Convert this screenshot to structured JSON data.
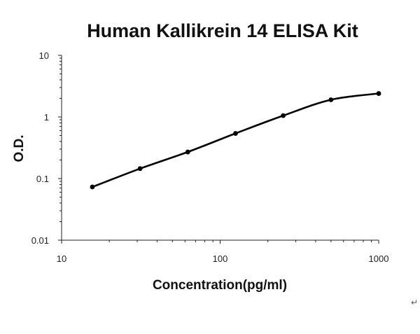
{
  "chart_data": {
    "type": "line",
    "title": "Human Kallikrein 14 ELISA Kit",
    "xlabel": "Concentration(pg/ml)",
    "ylabel": "O.D.",
    "x_scale": "log",
    "y_scale": "log",
    "xlim": [
      10,
      1000
    ],
    "ylim": [
      0.01,
      10
    ],
    "x_ticks": [
      "10",
      "100",
      "1000"
    ],
    "y_ticks": [
      "0.01",
      "0.1",
      "1",
      "10"
    ],
    "grid": false,
    "legend": "none",
    "x": [
      15.625,
      31.25,
      62.5,
      125,
      250,
      500,
      1000
    ],
    "y": [
      0.073,
      0.145,
      0.27,
      0.54,
      1.05,
      1.9,
      2.4
    ],
    "colors": {
      "line": "#000000",
      "axis": "#222222"
    }
  },
  "return_mark": "↵"
}
